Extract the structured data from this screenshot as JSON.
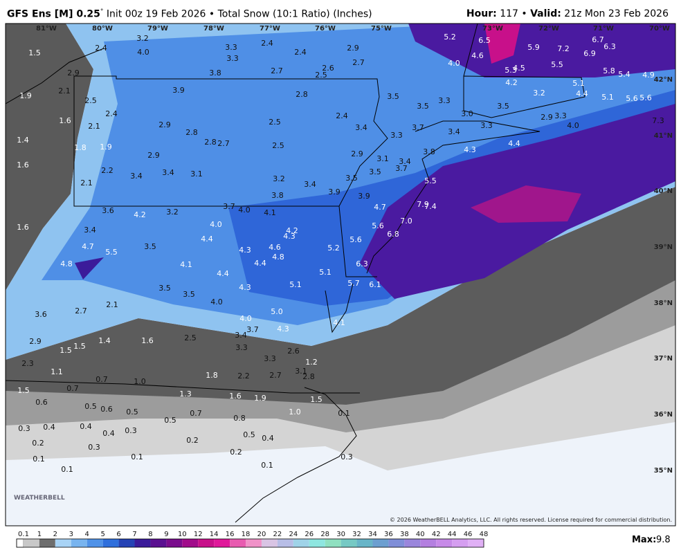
{
  "header": {
    "model": "GFS Ens [M] 0.25",
    "degree": "°",
    "init": "Init 00z 19 Feb 2026",
    "separator": "•",
    "product": "Total Snow (10:1 Ratio) (Inches)",
    "hour_label": "Hour:",
    "hour": "117",
    "valid_label": "Valid:",
    "valid": "21z Mon 23 Feb 2026"
  },
  "map": {
    "longitudes": [
      "81°W",
      "80°W",
      "79°W",
      "78°W",
      "77°W",
      "76°W",
      "75°W",
      "73°W",
      "72°W",
      "71°W",
      "70°W"
    ],
    "latitudes": [
      "42°N",
      "41°N",
      "40°N",
      "39°N",
      "38°N",
      "37°N",
      "36°N",
      "35°N"
    ],
    "point_values": [
      "1.5",
      "2.4",
      "3.2",
      "4.0",
      "3.3",
      "3.3",
      "2.4",
      "2.4",
      "2.9",
      "2.7",
      "3.8",
      "2.7",
      "2.6",
      "2.5",
      "5.2",
      "6.5",
      "4.6",
      "5.9",
      "7.2",
      "6.7",
      "6.3",
      "6.9",
      "5.5",
      "4.0",
      "5.3",
      "4.5",
      "5.8",
      "5.4",
      "4.9",
      "2.9",
      "1.9",
      "2.1",
      "3.9",
      "2.8",
      "4.2",
      "5.1",
      "3.2",
      "4.4",
      "5.1",
      "5.6",
      "5.6",
      "3.5",
      "3.5",
      "3.3",
      "3.5",
      "2.5",
      "2.4",
      "1.6",
      "2.1",
      "3.0",
      "2.5",
      "2.4",
      "3.4",
      "3.3",
      "3.7",
      "3.4",
      "3.3",
      "2.9",
      "3.3",
      "4.0",
      "7.3",
      "2.9",
      "2.8",
      "1.4",
      "1.8",
      "1.9",
      "2.8",
      "2.7",
      "2.5",
      "2.9",
      "3.1",
      "3.8",
      "4.3",
      "4.4",
      "1.6",
      "2.9",
      "2.2",
      "3.4",
      "3.4",
      "3.1",
      "3.7",
      "3.4",
      "3.5",
      "3.2",
      "3.4",
      "3.9",
      "3.5",
      "5.5",
      "2.1",
      "3.8",
      "3.9",
      "7.9",
      "7.4",
      "3.6",
      "4.2",
      "3.2",
      "3.7",
      "4.0",
      "4.1",
      "4.7",
      "1.6",
      "4.0",
      "4.2",
      "4.3",
      "3.4",
      "5.6",
      "7.0",
      "6.8",
      "4.4",
      "4.7",
      "5.5",
      "3.5",
      "4.3",
      "4.6",
      "4.8",
      "5.2",
      "5.6",
      "4.8",
      "4.1",
      "4.4",
      "4.4",
      "5.1",
      "6.3",
      "3.5",
      "4.3",
      "5.1",
      "5.7",
      "6.1",
      "3.5",
      "4.0",
      "2.1",
      "2.7",
      "5.0",
      "3.6",
      "4.0",
      "4.1",
      "3.7",
      "4.3",
      "3.4",
      "2.9",
      "1.5",
      "1.4",
      "1.6",
      "2.5",
      "3.3",
      "1.5",
      "2.6",
      "2.3",
      "3.3",
      "1.2",
      "3.1",
      "1.1",
      "0.7",
      "1.0",
      "1.8",
      "2.2",
      "2.7",
      "2.8",
      "1.5",
      "0.7",
      "1.3",
      "1.6",
      "1.9",
      "1.5",
      "0.6",
      "0.5",
      "0.6",
      "0.5",
      "0.7",
      "1.0",
      "0.1",
      "0.8",
      "0.5",
      "0.3",
      "0.4",
      "0.4",
      "0.4",
      "0.3",
      "0.5",
      "0.4",
      "0.2",
      "0.3",
      "0.2",
      "0.2",
      "0.1",
      "0.1",
      "0.3",
      "0.1",
      "0.1"
    ],
    "watermark": "WEATHERBELL",
    "copyright": "© 2026 WeatherBELL Analytics, LLC. All rights reserved. License required for commercial distribution."
  },
  "legend": {
    "ticks": [
      0.1,
      1,
      2,
      3,
      4,
      5,
      6,
      7,
      8,
      9,
      10,
      12,
      14,
      16,
      18,
      20,
      22,
      24,
      26,
      28,
      30,
      32,
      34,
      36,
      38,
      40,
      42,
      44,
      46,
      48
    ],
    "colors": [
      "#c8c8c8",
      "#6e6e6e",
      "#a8d3f5",
      "#78b4ef",
      "#4f92e8",
      "#2f6fdc",
      "#2543b5",
      "#3b1b9a",
      "#5a1090",
      "#7a0c8c",
      "#a10c8a",
      "#c8108a",
      "#e0189a",
      "#e85bb0",
      "#f092c8",
      "#d9c4e4",
      "#b7bde6",
      "#9fd3e8",
      "#8ee6e0",
      "#8fe0c0",
      "#76c9c4",
      "#68b5c8",
      "#6c9fd0",
      "#7f8ed8",
      "#9a86dc",
      "#b47fe0",
      "#c78ae8",
      "#d59ef0",
      "#e0b0f5"
    ],
    "max_label": "Max:",
    "max": "9.8"
  }
}
